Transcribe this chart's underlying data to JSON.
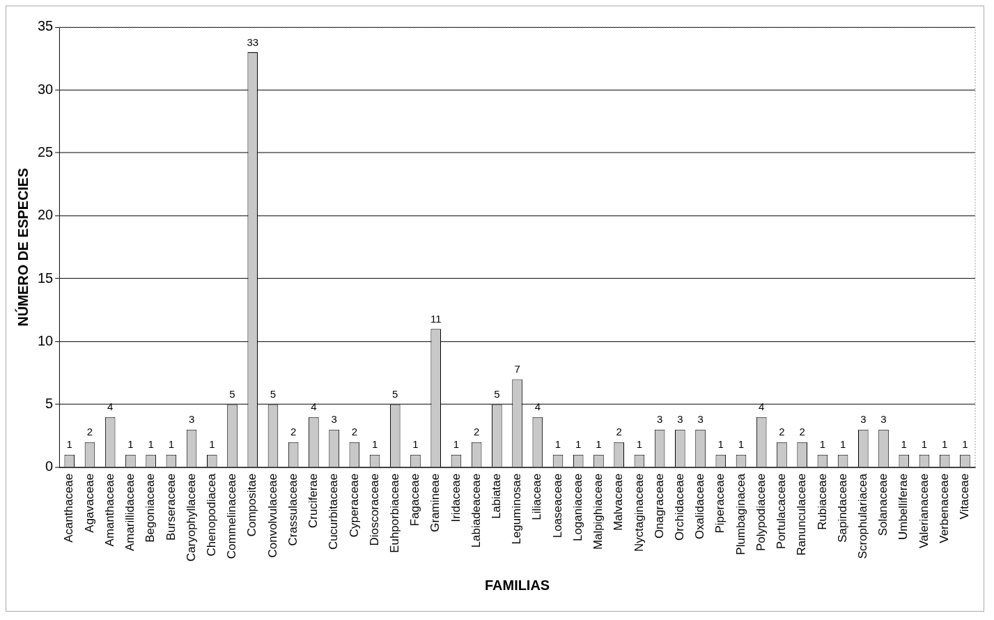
{
  "chart_data": {
    "type": "bar",
    "xlabel": "FAMILIAS",
    "ylabel": "NÚMERO DE ESPECIES",
    "categories": [
      "Acanthaceae",
      "Agavaceae",
      "Amanthaceae",
      "Amarillidaceae",
      "Begoniaceae",
      "Burseraceae",
      "Caryophyllaceae",
      "Chenopodiacea",
      "Commelinaceae",
      "Compositae",
      "Convolvulaceae",
      "Crassulaceae",
      "Cruciferae",
      "Cucurbitaceae",
      "Cyperaceae",
      "Dioscoraceae",
      "Euhporbiaceae",
      "Fagaceae",
      "Gramineae",
      "Iridaceae",
      "Labiadeaceae",
      "Labiatae",
      "Leguminosae",
      "Liliaceae",
      "Loaseaceae",
      "Loganiaceae",
      "Malpighiaceae",
      "Malvaceae",
      "Nyctaginaceae",
      "Onagraceae",
      "Orchidaceae",
      "Oxalidaceae",
      "Piperaceae",
      "Plumbaginacea",
      "Polypodiaceae",
      "Portulacaceae",
      "Ranunculaceae",
      "Rubiaceae",
      "Sapindaceae",
      "Scrophulariacea",
      "Solanaceae",
      "Umbelliferae",
      "Valerianaceae",
      "Verbenaceae",
      "Vitaceae"
    ],
    "values": [
      1,
      2,
      4,
      1,
      1,
      1,
      3,
      1,
      5,
      33,
      5,
      2,
      4,
      3,
      2,
      1,
      5,
      1,
      11,
      1,
      2,
      5,
      7,
      4,
      1,
      1,
      1,
      2,
      1,
      3,
      3,
      3,
      1,
      1,
      4,
      2,
      2,
      1,
      1,
      3,
      3,
      1,
      1,
      1,
      1
    ],
    "color": "#c8c8c8",
    "ylim": [
      0,
      35
    ],
    "yticks": [
      0,
      5,
      10,
      15,
      20,
      25,
      30,
      35
    ],
    "grid": "y",
    "data_labels": true,
    "legend": false
  }
}
